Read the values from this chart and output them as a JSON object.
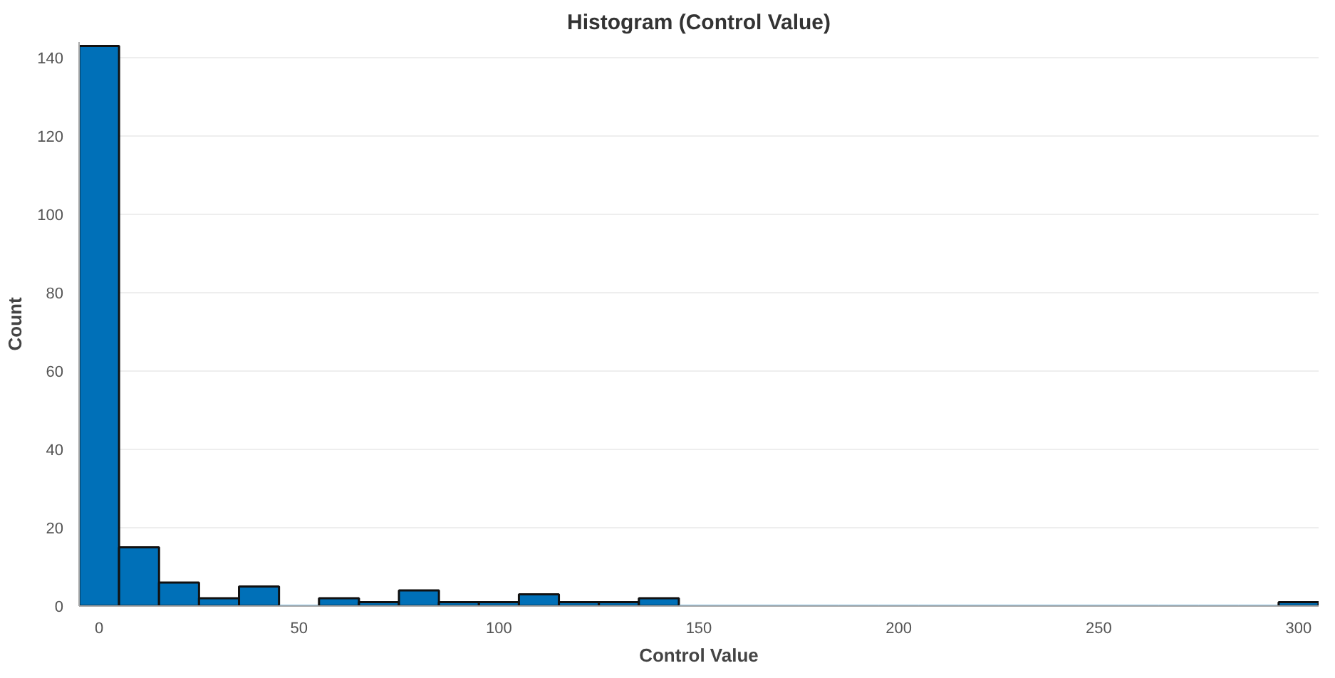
{
  "chart_data": {
    "type": "histogram",
    "title": "Histogram (Control Value)",
    "xlabel": "Control Value",
    "ylabel": "Count",
    "bins": [
      -5,
      5,
      15,
      25,
      35,
      45,
      55,
      65,
      75,
      85,
      95,
      105,
      115,
      125,
      135,
      145,
      155,
      165,
      175,
      185,
      195,
      205,
      215,
      225,
      235,
      245,
      255,
      265,
      275,
      285,
      295,
      305
    ],
    "values": [
      143,
      15,
      6,
      2,
      5,
      0,
      2,
      1,
      4,
      1,
      1,
      3,
      1,
      1,
      2,
      0,
      0,
      0,
      0,
      0,
      0,
      0,
      0,
      0,
      0,
      0,
      0,
      0,
      0,
      0,
      1
    ],
    "color": "#0070b8",
    "xlim": [
      -5,
      305
    ],
    "ylim": [
      0,
      144
    ],
    "xticks": [
      0,
      50,
      100,
      150,
      200,
      250,
      300
    ],
    "yticks": [
      0,
      20,
      40,
      60,
      80,
      100,
      120,
      140
    ],
    "grid": "y"
  }
}
